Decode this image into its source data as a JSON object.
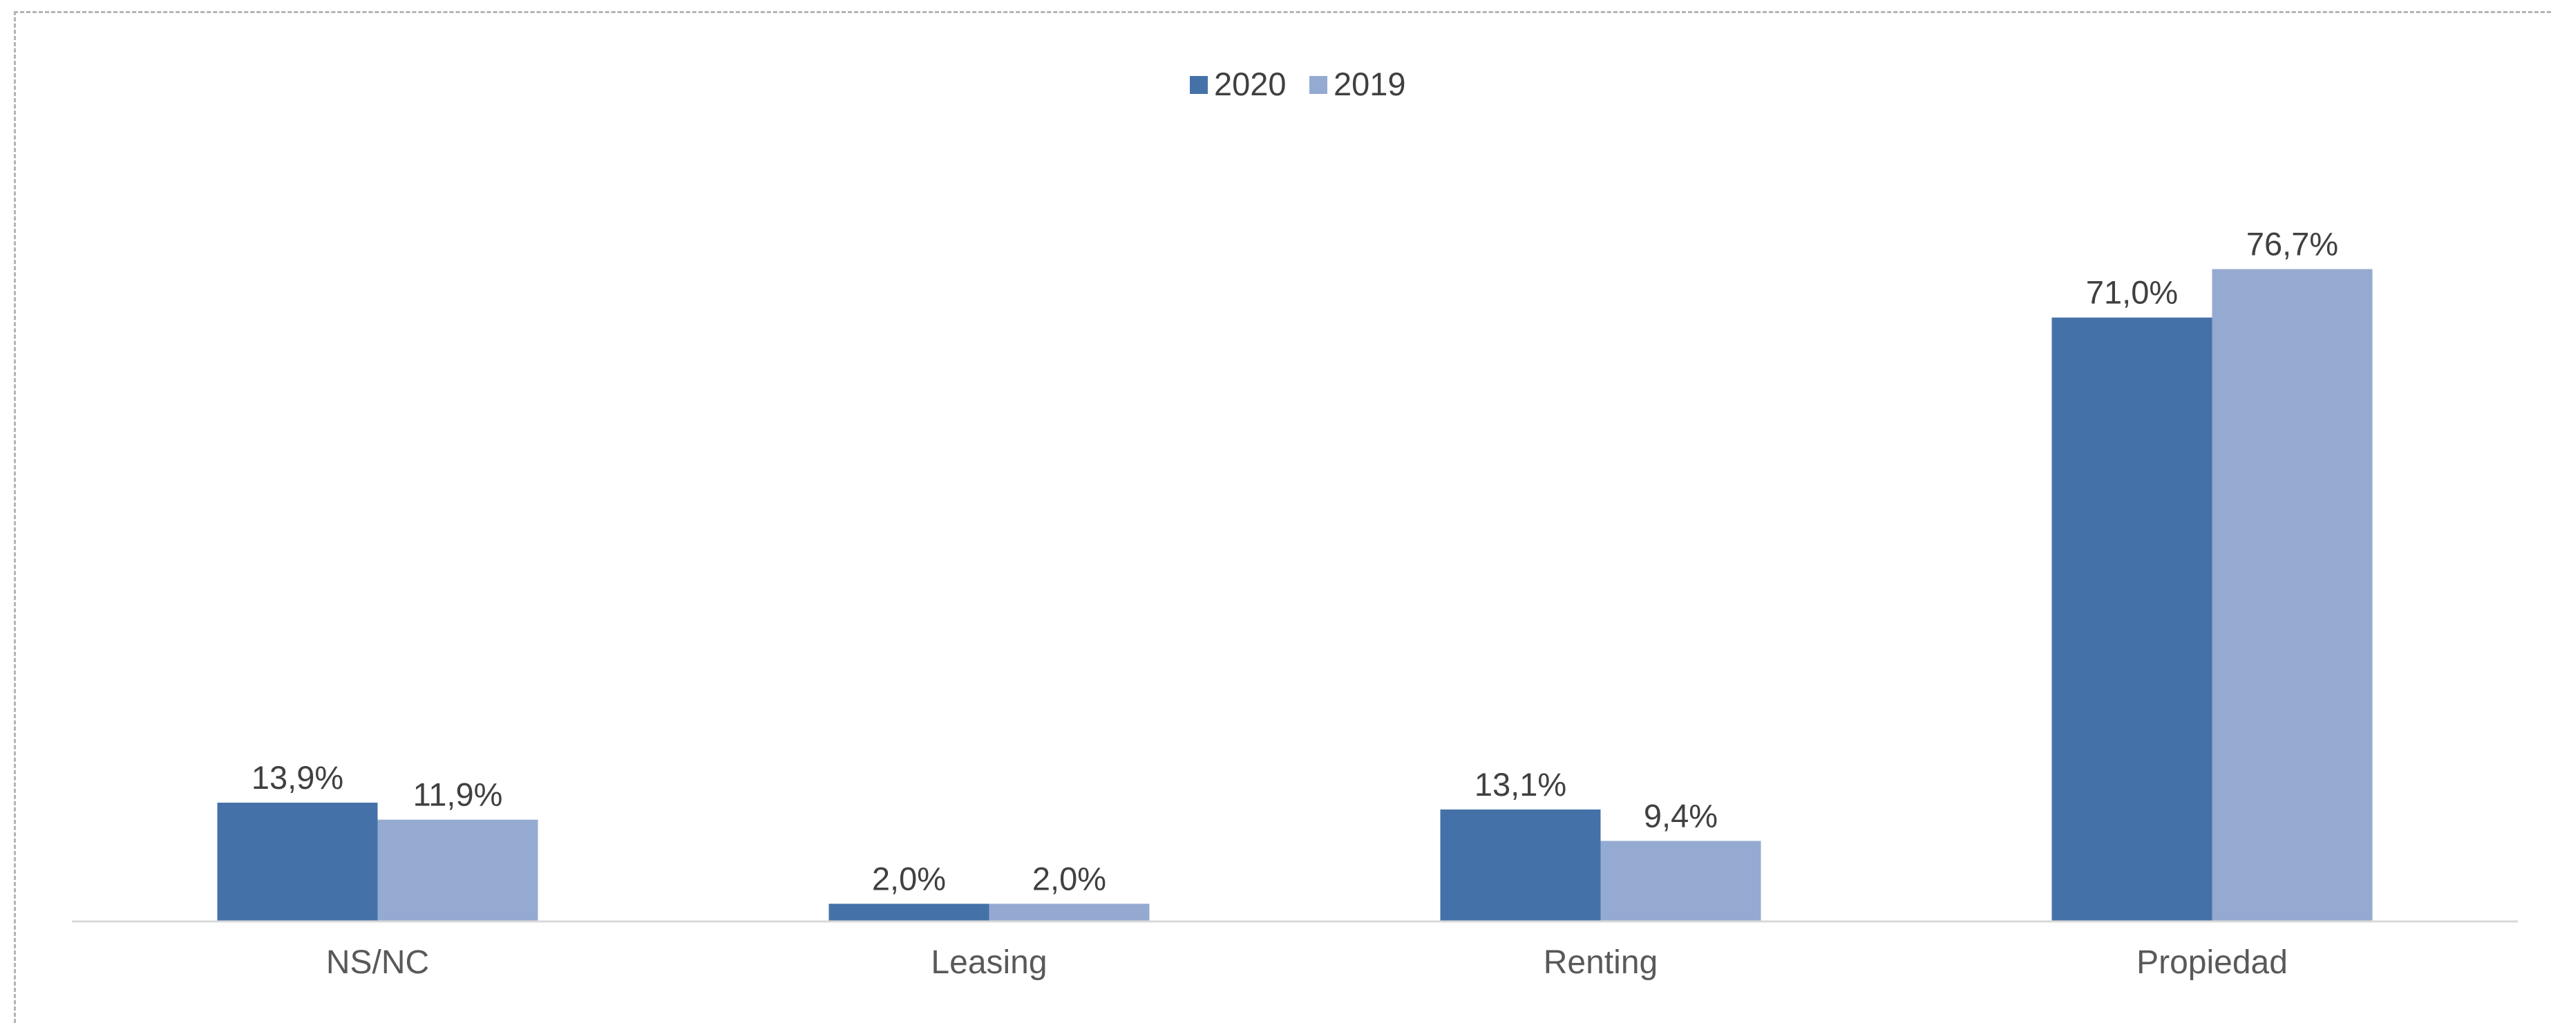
{
  "chart_data": {
    "type": "bar",
    "categories": [
      "NS/NC",
      "Leasing",
      "Renting",
      "Propiedad"
    ],
    "series": [
      {
        "name": "2020",
        "values": [
          13.9,
          2.0,
          13.1,
          71.0
        ],
        "labels": [
          "13,9%",
          "2,0%",
          "13,1%",
          "71,0%"
        ],
        "color": "#4472a8"
      },
      {
        "name": "2019",
        "values": [
          11.9,
          2.0,
          9.4,
          76.7
        ],
        "labels": [
          "11,9%",
          "2,0%",
          "9,4%",
          "76,7%"
        ],
        "color": "#95aad1"
      }
    ],
    "title": "",
    "xlabel": "",
    "ylabel": "",
    "ylim": [
      0,
      80
    ],
    "grid": false,
    "legend_position": "top-center",
    "axis_color": "#d9d9d9"
  }
}
